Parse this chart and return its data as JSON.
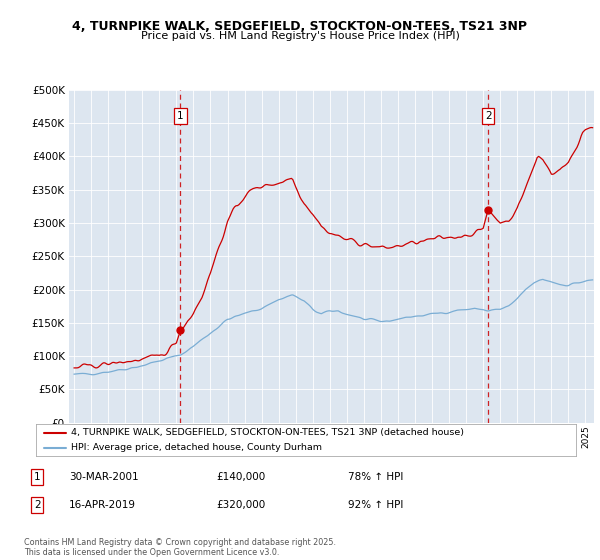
{
  "title_line1": "4, TURNPIKE WALK, SEDGEFIELD, STOCKTON-ON-TEES, TS21 3NP",
  "title_line2": "Price paid vs. HM Land Registry's House Price Index (HPI)",
  "legend_label_red": "4, TURNPIKE WALK, SEDGEFIELD, STOCKTON-ON-TEES, TS21 3NP (detached house)",
  "legend_label_blue": "HPI: Average price, detached house, County Durham",
  "annotation1_date": "30-MAR-2001",
  "annotation1_price": "£140,000",
  "annotation1_hpi": "78% ↑ HPI",
  "annotation2_date": "16-APR-2019",
  "annotation2_price": "£320,000",
  "annotation2_hpi": "92% ↑ HPI",
  "footnote": "Contains HM Land Registry data © Crown copyright and database right 2025.\nThis data is licensed under the Open Government Licence v3.0.",
  "ylim": [
    0,
    500000
  ],
  "yticks": [
    0,
    50000,
    100000,
    150000,
    200000,
    250000,
    300000,
    350000,
    400000,
    450000,
    500000
  ],
  "bg_color": "#dde6f0",
  "red_color": "#cc0000",
  "blue_color": "#7aadd4",
  "vline_color": "#cc0000",
  "marker1_x": 2001.24,
  "marker1_y": 140000,
  "marker2_x": 2019.29,
  "marker2_y": 320000,
  "xlim_left": 1994.7,
  "xlim_right": 2025.5
}
